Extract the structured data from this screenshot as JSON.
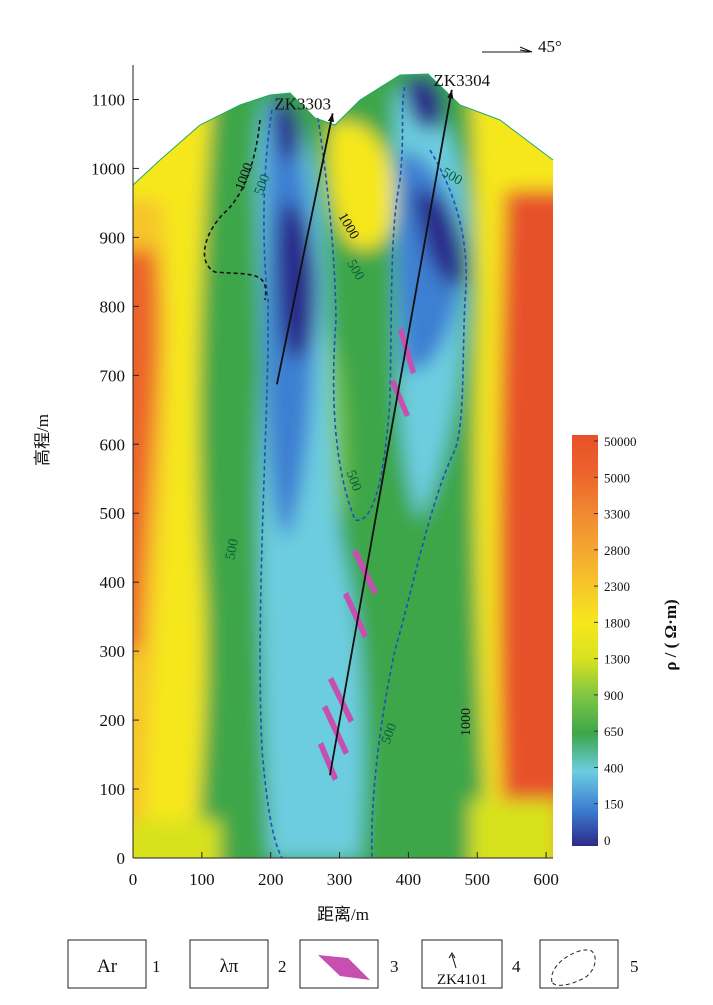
{
  "chart_data": {
    "type": "contour",
    "xlabel": "距离/m",
    "ylabel": "高程/m",
    "xlim": [
      0,
      610
    ],
    "ylim": [
      0,
      1150
    ],
    "xticks": [
      0,
      100,
      200,
      300,
      400,
      500,
      600
    ],
    "yticks": [
      0,
      100,
      200,
      300,
      400,
      500,
      600,
      700,
      800,
      900,
      1000,
      1100
    ],
    "orientation": "45°",
    "colorbar": {
      "title": "ρ / ( Ω·m)",
      "levels": [
        0,
        150,
        400,
        650,
        900,
        1300,
        1800,
        2300,
        2800,
        3300,
        5000,
        50000
      ],
      "colors": [
        "#2c2a8a",
        "#3e7fd2",
        "#6dcde0",
        "#3da64a",
        "#7dc543",
        "#d8e21f",
        "#f6e71c",
        "#f6c52b",
        "#f4a431",
        "#f08532",
        "#ec632c",
        "#e7512a"
      ]
    },
    "boreholes": [
      {
        "name": "ZK3303",
        "x": [
          209,
          290
        ],
        "y": [
          687,
          1080
        ]
      },
      {
        "name": "ZK3304",
        "x": [
          286,
          463
        ],
        "y": [
          120,
          1114
        ]
      }
    ],
    "contour_labels": [
      "1000",
      "500",
      "1000",
      "500",
      "500",
      "500",
      "500",
      "500",
      "1000"
    ],
    "legend": [
      {
        "symbol": "Ar",
        "label": "1"
      },
      {
        "symbol": "λπ",
        "label": "2"
      },
      {
        "label": "3"
      },
      {
        "symbol": "ZK4101",
        "label": "4"
      },
      {
        "label": "5"
      }
    ]
  }
}
